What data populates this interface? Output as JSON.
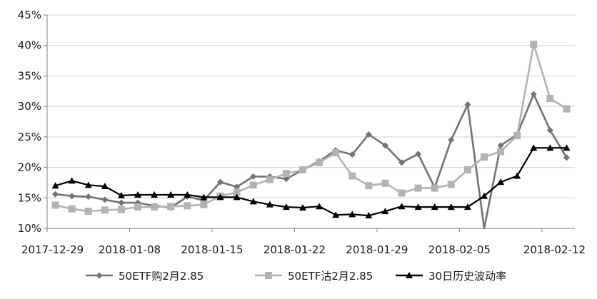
{
  "chart_data": {
    "type": "line",
    "title": "",
    "xlabel": "",
    "ylabel": "",
    "ylim": [
      0.1,
      0.45
    ],
    "yticks": [
      "10%",
      "15%",
      "20%",
      "25%",
      "30%",
      "35%",
      "40%",
      "45%"
    ],
    "xticks": [
      "2017-12-29",
      "2018-01-08",
      "2018-01-15",
      "2018-01-22",
      "2018-01-29",
      "2018-02-05",
      "2018-02-12"
    ],
    "grid": "horizontal",
    "legend_position": "bottom",
    "series": [
      {
        "name": "50ETF购2月2.85",
        "color": "#737373",
        "marker": "diamond",
        "values": [
          0.156,
          0.153,
          0.152,
          0.147,
          0.142,
          0.142,
          0.137,
          0.134,
          0.152,
          0.146,
          0.176,
          0.168,
          0.185,
          0.185,
          0.181,
          0.196,
          0.21,
          0.228,
          0.221,
          0.254,
          0.236,
          0.208,
          0.222,
          0.167,
          0.245,
          0.303,
          0.04,
          0.236,
          0.254,
          0.32,
          0.261,
          0.216
        ]
      },
      {
        "name": "50ETF沽2月2.85",
        "color": "#b3b3b3",
        "marker": "square",
        "values": [
          0.138,
          0.132,
          0.128,
          0.13,
          0.131,
          0.135,
          0.135,
          0.136,
          0.137,
          0.139,
          0.153,
          0.159,
          0.171,
          0.18,
          0.19,
          0.196,
          0.208,
          0.224,
          0.186,
          0.17,
          0.174,
          0.158,
          0.166,
          0.166,
          0.172,
          0.196,
          0.217,
          0.226,
          0.252,
          0.402,
          0.313,
          0.296
        ]
      },
      {
        "name": "30日历史波动率",
        "color": "#000000",
        "marker": "triangle",
        "values": [
          0.17,
          0.178,
          0.171,
          0.169,
          0.154,
          0.155,
          0.155,
          0.155,
          0.155,
          0.151,
          0.151,
          0.151,
          0.144,
          0.139,
          0.135,
          0.134,
          0.136,
          0.122,
          0.123,
          0.121,
          0.128,
          0.136,
          0.135,
          0.135,
          0.135,
          0.135,
          0.153,
          0.176,
          0.186,
          0.232,
          0.232,
          0.232
        ]
      }
    ]
  }
}
